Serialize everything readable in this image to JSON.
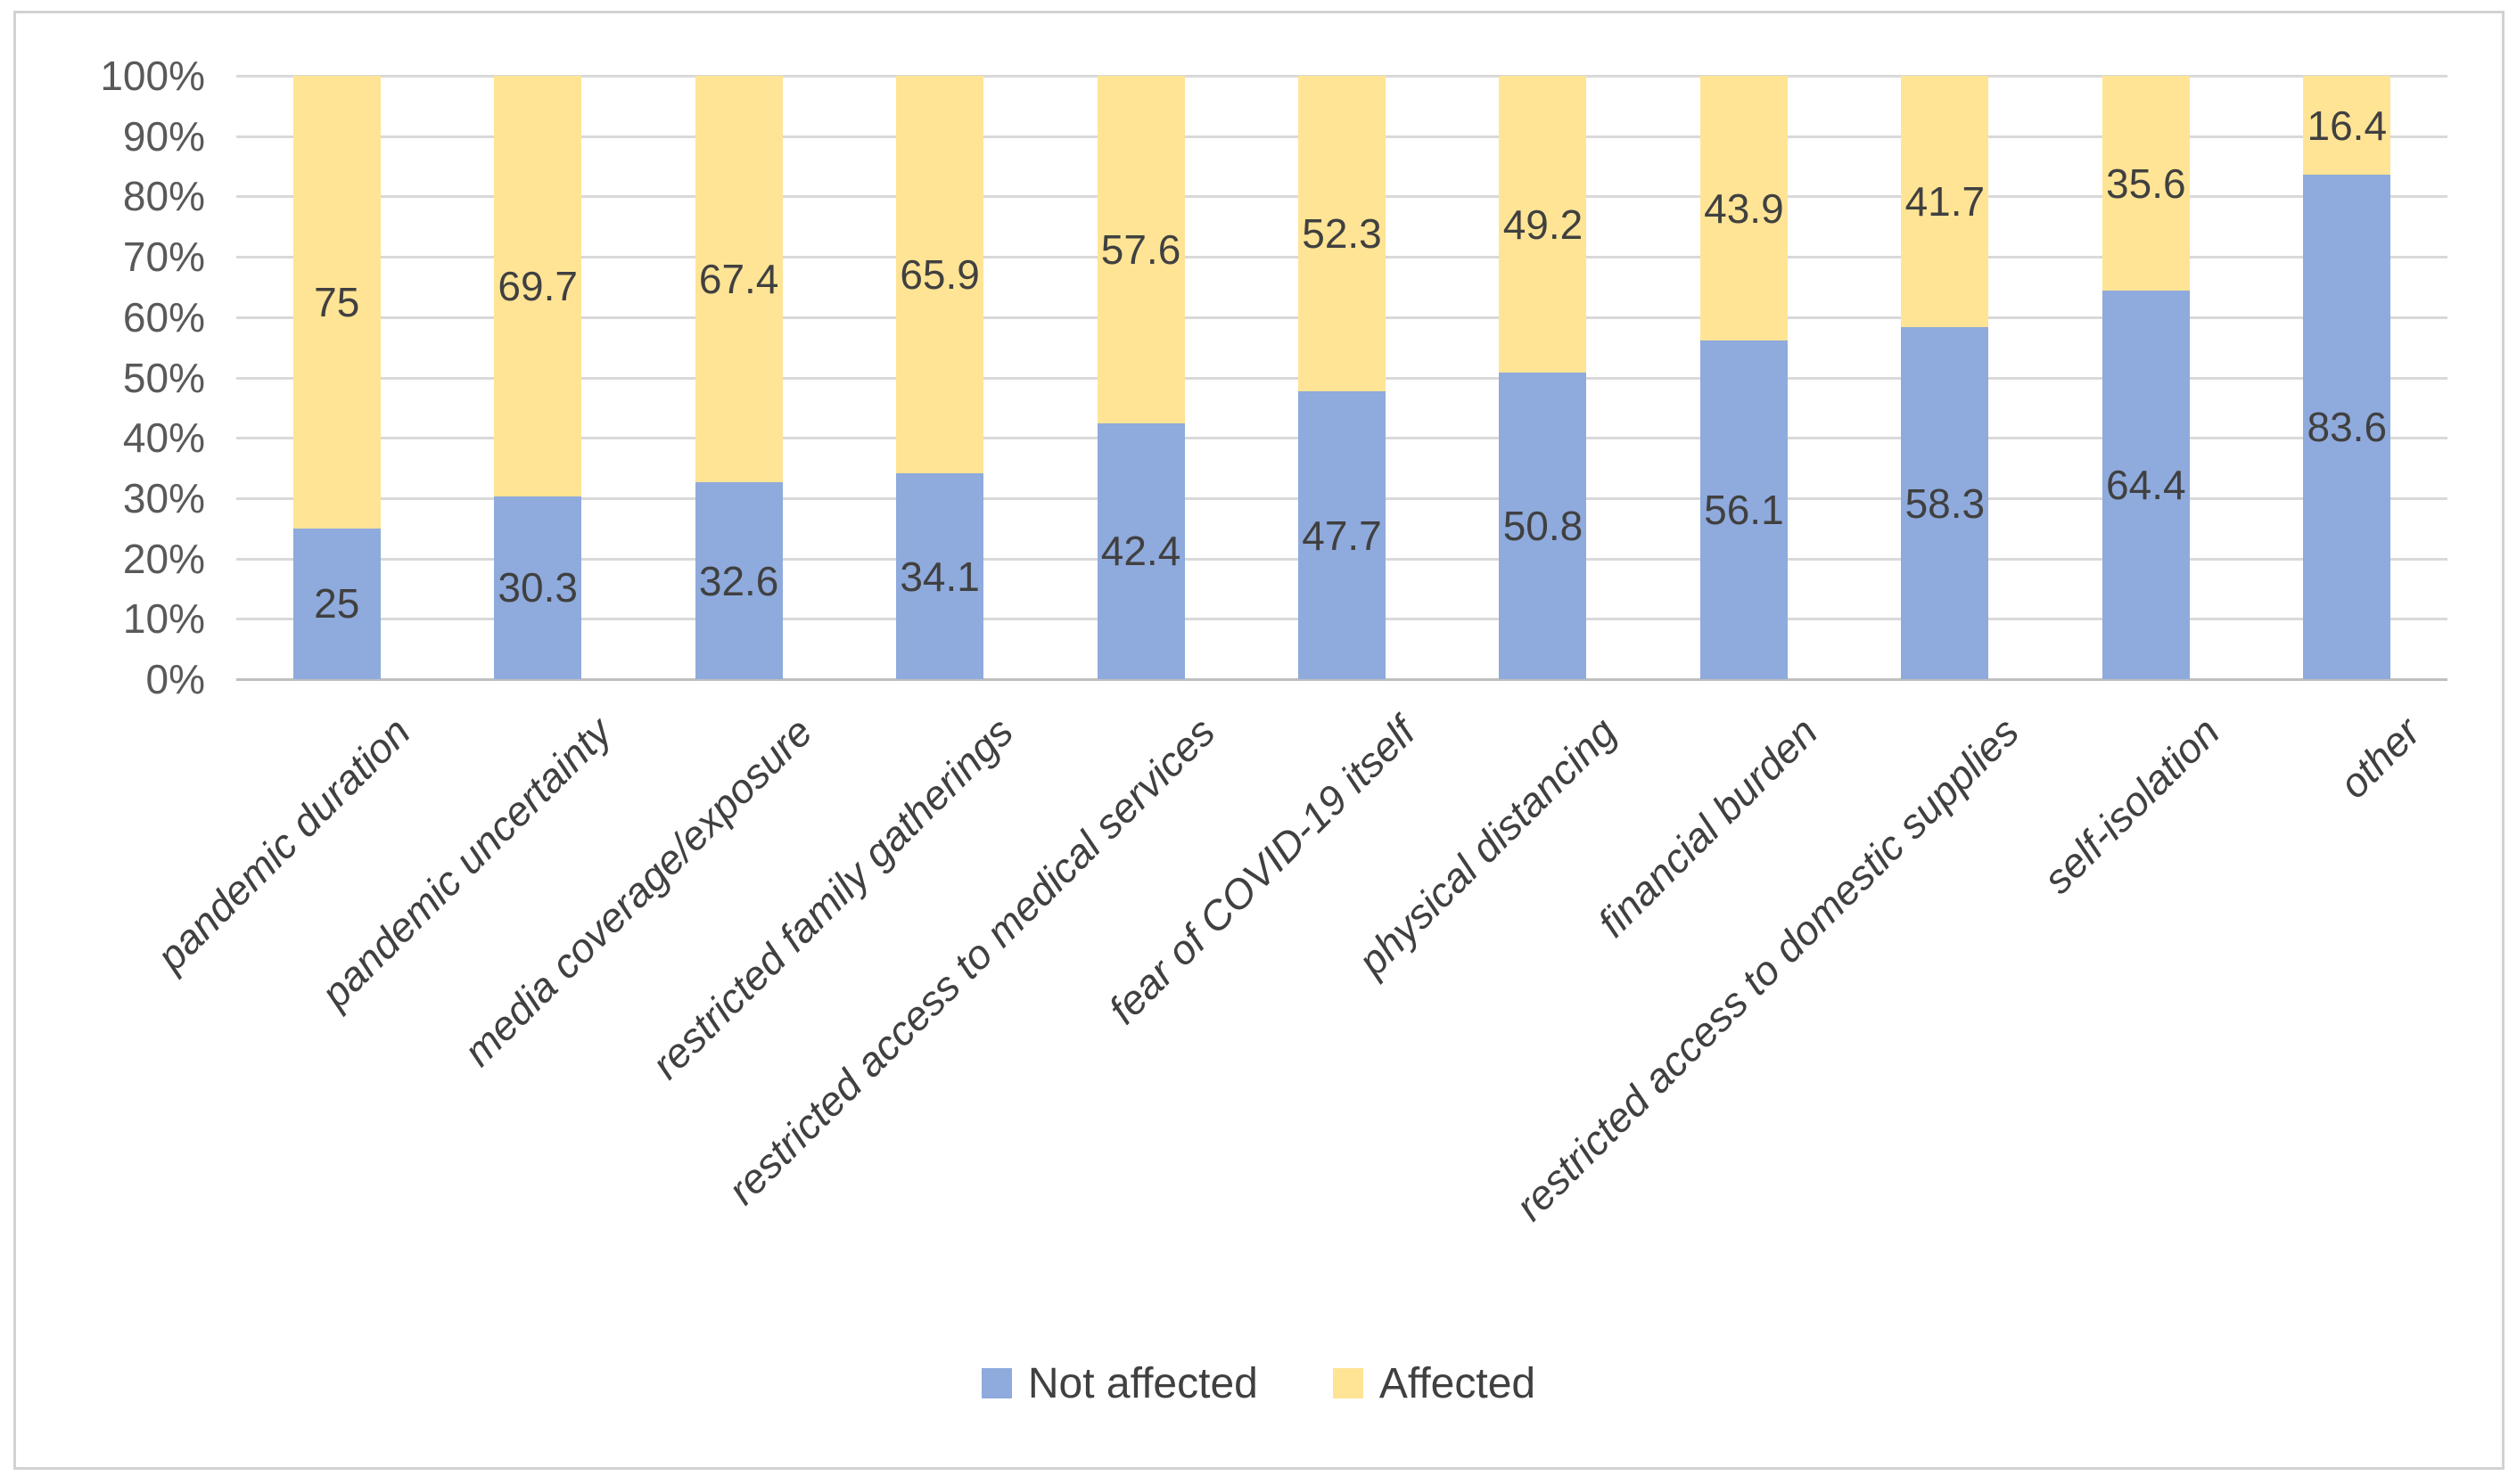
{
  "chart_data": {
    "type": "bar",
    "variant": "100-percent-stacked-column",
    "title": "",
    "xlabel": "",
    "ylabel": "",
    "ylim": [
      0,
      100
    ],
    "grid": true,
    "legend_position": "bottom",
    "data_labels": "centered-in-segment",
    "y_ticks": [
      {
        "value": 100,
        "label": "100%"
      },
      {
        "value": 90,
        "label": "90%"
      },
      {
        "value": 80,
        "label": "80%"
      },
      {
        "value": 70,
        "label": "70%"
      },
      {
        "value": 60,
        "label": "60%"
      },
      {
        "value": 50,
        "label": "50%"
      },
      {
        "value": 40,
        "label": "40%"
      },
      {
        "value": 30,
        "label": "30%"
      },
      {
        "value": 20,
        "label": "20%"
      },
      {
        "value": 10,
        "label": "10%"
      },
      {
        "value": 0,
        "label": "0%"
      }
    ],
    "categories": [
      "pandemic duration",
      "pandemic uncertainty",
      "media coverage/exposure",
      "restricted family gatherings",
      "restricted access to medical services",
      "fear of COVID-19 itself",
      "physical distancing",
      "financial burden",
      "restricted access to domestic supplies",
      "self-isolation",
      "other"
    ],
    "series": [
      {
        "name": "Not affected",
        "color": "#8FAADC",
        "values": [
          25,
          30.3,
          32.6,
          34.1,
          42.4,
          47.7,
          50.8,
          56.1,
          58.3,
          64.4,
          83.6
        ]
      },
      {
        "name": "Affected",
        "color": "#FFE495",
        "values": [
          75,
          69.7,
          67.4,
          65.9,
          57.6,
          52.3,
          49.2,
          43.9,
          41.7,
          35.6,
          16.4
        ]
      }
    ],
    "colors": {
      "data_label": "#404040",
      "axis_label": "#595959",
      "category_label": "#404040",
      "gridline": "#D9D9D9",
      "axis_line": "#BFBFBF",
      "frame_border": "#D0D0D0",
      "background": "#FFFFFF"
    }
  },
  "legend": {
    "items": [
      {
        "label": "Not affected",
        "color": "#8FAADC"
      },
      {
        "label": "Affected",
        "color": "#FFE495"
      }
    ]
  }
}
